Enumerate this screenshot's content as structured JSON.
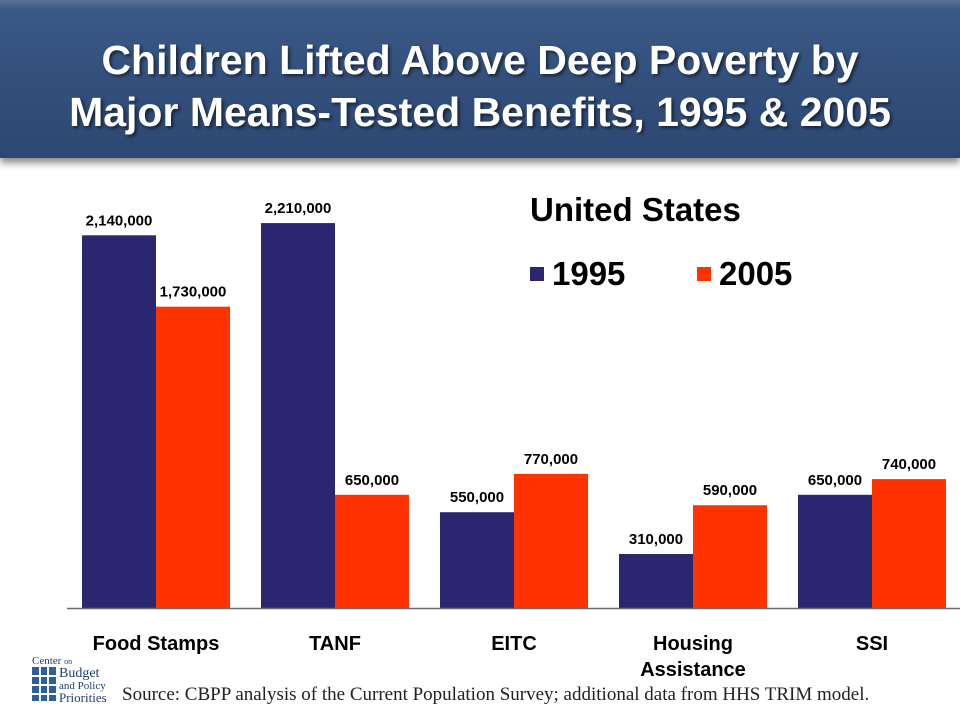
{
  "title_lines": [
    "Children Lifted Above Deep Poverty by",
    "Major Means-Tested Benefits, 1995 & 2005"
  ],
  "chart_data": {
    "type": "bar",
    "title": "Children Lifted Above Deep Poverty by Major Means-Tested Benefits, 1995 & 2005",
    "subtitle": "United States",
    "categories": [
      "Food Stamps",
      "TANF",
      "EITC",
      "Housing Assistance",
      "SSI"
    ],
    "category_lines": [
      [
        "Food Stamps"
      ],
      [
        "TANF"
      ],
      [
        "EITC"
      ],
      [
        "Housing",
        "Assistance"
      ],
      [
        "SSI"
      ]
    ],
    "series": [
      {
        "name": "1995",
        "color": "#2a2670",
        "values": [
          2140000,
          2210000,
          550000,
          310000,
          650000
        ],
        "labels": [
          "2,140,000",
          "2,210,000",
          "550,000",
          "310,000",
          "650,000"
        ]
      },
      {
        "name": "2005",
        "color": "#ff3300",
        "values": [
          1730000,
          650000,
          770000,
          590000,
          740000
        ],
        "labels": [
          "1,730,000",
          "650,000",
          "770,000",
          "590,000",
          "740,000"
        ]
      }
    ],
    "ylim": [
      0,
      2400000
    ],
    "grid": false,
    "legend": "top-right"
  },
  "source": "Source: CBPP analysis of the Current Population Survey; additional data from HHS TRIM model.",
  "logo": {
    "line1": "Center",
    "line1_small": "on",
    "line2": "Budget",
    "line3": "and Policy",
    "line4": "Priorities"
  }
}
